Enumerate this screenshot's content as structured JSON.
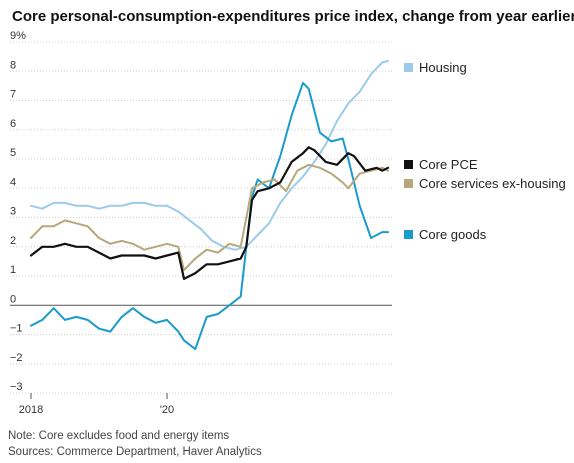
{
  "chart_data": {
    "type": "line",
    "title": "Core personal-consumption-expenditures price index, change from year earlier",
    "y_unit": "%",
    "ylim": [
      -3,
      9
    ],
    "y_ticks": [
      -3,
      -2,
      -1,
      0,
      1,
      2,
      3,
      4,
      5,
      6,
      7,
      8,
      9
    ],
    "x_range": [
      "2018-01",
      "2023-04"
    ],
    "x_tick_labels": [
      {
        "date": "2018-01",
        "label": "2018"
      },
      {
        "date": "2020-01",
        "label": "'20"
      }
    ],
    "grid": "horizontal",
    "legend": "right",
    "series": [
      {
        "name": "Housing",
        "color": "#9ccbe9",
        "points": [
          [
            "2018-01",
            3.4
          ],
          [
            "2018-03",
            3.3
          ],
          [
            "2018-05",
            3.5
          ],
          [
            "2018-07",
            3.5
          ],
          [
            "2018-09",
            3.4
          ],
          [
            "2018-11",
            3.4
          ],
          [
            "2019-01",
            3.3
          ],
          [
            "2019-03",
            3.4
          ],
          [
            "2019-05",
            3.4
          ],
          [
            "2019-07",
            3.5
          ],
          [
            "2019-09",
            3.5
          ],
          [
            "2019-11",
            3.4
          ],
          [
            "2020-01",
            3.4
          ],
          [
            "2020-03",
            3.2
          ],
          [
            "2020-05",
            2.9
          ],
          [
            "2020-07",
            2.6
          ],
          [
            "2020-09",
            2.2
          ],
          [
            "2020-11",
            2.0
          ],
          [
            "2021-01",
            1.9
          ],
          [
            "2021-03",
            2.0
          ],
          [
            "2021-05",
            2.4
          ],
          [
            "2021-07",
            2.8
          ],
          [
            "2021-09",
            3.5
          ],
          [
            "2021-11",
            4.0
          ],
          [
            "2022-01",
            4.4
          ],
          [
            "2022-03",
            4.9
          ],
          [
            "2022-05",
            5.5
          ],
          [
            "2022-07",
            6.3
          ],
          [
            "2022-09",
            6.9
          ],
          [
            "2022-11",
            7.3
          ],
          [
            "2023-01",
            7.9
          ],
          [
            "2023-03",
            8.3
          ],
          [
            "2023-04",
            8.35
          ]
        ]
      },
      {
        "name": "Core PCE",
        "color": "#111111",
        "points": [
          [
            "2018-01",
            1.7
          ],
          [
            "2018-03",
            2.0
          ],
          [
            "2018-05",
            2.0
          ],
          [
            "2018-07",
            2.1
          ],
          [
            "2018-09",
            2.0
          ],
          [
            "2018-11",
            2.0
          ],
          [
            "2019-01",
            1.8
          ],
          [
            "2019-03",
            1.6
          ],
          [
            "2019-05",
            1.7
          ],
          [
            "2019-07",
            1.7
          ],
          [
            "2019-09",
            1.7
          ],
          [
            "2019-11",
            1.6
          ],
          [
            "2020-01",
            1.7
          ],
          [
            "2020-03",
            1.8
          ],
          [
            "2020-04",
            0.9
          ],
          [
            "2020-06",
            1.1
          ],
          [
            "2020-08",
            1.4
          ],
          [
            "2020-10",
            1.4
          ],
          [
            "2020-12",
            1.5
          ],
          [
            "2021-02",
            1.6
          ],
          [
            "2021-03",
            2.0
          ],
          [
            "2021-04",
            3.6
          ],
          [
            "2021-05",
            3.9
          ],
          [
            "2021-07",
            4.0
          ],
          [
            "2021-09",
            4.2
          ],
          [
            "2021-11",
            4.9
          ],
          [
            "2022-01",
            5.2
          ],
          [
            "2022-02",
            5.4
          ],
          [
            "2022-03",
            5.3
          ],
          [
            "2022-05",
            4.9
          ],
          [
            "2022-07",
            4.8
          ],
          [
            "2022-09",
            5.2
          ],
          [
            "2022-10",
            5.1
          ],
          [
            "2022-12",
            4.6
          ],
          [
            "2023-02",
            4.7
          ],
          [
            "2023-03",
            4.6
          ],
          [
            "2023-04",
            4.7
          ]
        ]
      },
      {
        "name": "Core services ex-housing",
        "color": "#b5a87a",
        "points": [
          [
            "2018-01",
            2.3
          ],
          [
            "2018-03",
            2.7
          ],
          [
            "2018-05",
            2.7
          ],
          [
            "2018-07",
            2.9
          ],
          [
            "2018-09",
            2.8
          ],
          [
            "2018-11",
            2.7
          ],
          [
            "2019-01",
            2.3
          ],
          [
            "2019-03",
            2.1
          ],
          [
            "2019-05",
            2.2
          ],
          [
            "2019-07",
            2.1
          ],
          [
            "2019-09",
            1.9
          ],
          [
            "2019-11",
            2.0
          ],
          [
            "2020-01",
            2.1
          ],
          [
            "2020-03",
            2.0
          ],
          [
            "2020-04",
            1.2
          ],
          [
            "2020-06",
            1.6
          ],
          [
            "2020-08",
            1.9
          ],
          [
            "2020-10",
            1.8
          ],
          [
            "2020-12",
            2.1
          ],
          [
            "2021-02",
            2.0
          ],
          [
            "2021-04",
            4.0
          ],
          [
            "2021-06",
            4.2
          ],
          [
            "2021-08",
            4.3
          ],
          [
            "2021-10",
            3.9
          ],
          [
            "2021-12",
            4.6
          ],
          [
            "2022-02",
            4.8
          ],
          [
            "2022-04",
            4.7
          ],
          [
            "2022-06",
            4.5
          ],
          [
            "2022-08",
            4.2
          ],
          [
            "2022-09",
            4.0
          ],
          [
            "2022-11",
            4.5
          ],
          [
            "2023-01",
            4.6
          ],
          [
            "2023-03",
            4.7
          ],
          [
            "2023-04",
            4.6
          ]
        ]
      },
      {
        "name": "Core goods",
        "color": "#1a9bcc",
        "points": [
          [
            "2018-01",
            -0.7
          ],
          [
            "2018-03",
            -0.5
          ],
          [
            "2018-05",
            -0.1
          ],
          [
            "2018-07",
            -0.5
          ],
          [
            "2018-09",
            -0.4
          ],
          [
            "2018-11",
            -0.5
          ],
          [
            "2019-01",
            -0.8
          ],
          [
            "2019-03",
            -0.9
          ],
          [
            "2019-05",
            -0.4
          ],
          [
            "2019-07",
            -0.1
          ],
          [
            "2019-09",
            -0.4
          ],
          [
            "2019-11",
            -0.6
          ],
          [
            "2020-01",
            -0.5
          ],
          [
            "2020-03",
            -0.9
          ],
          [
            "2020-04",
            -1.2
          ],
          [
            "2020-06",
            -1.5
          ],
          [
            "2020-08",
            -0.4
          ],
          [
            "2020-10",
            -0.3
          ],
          [
            "2020-12",
            0.0
          ],
          [
            "2021-02",
            0.3
          ],
          [
            "2021-03",
            2.0
          ],
          [
            "2021-04",
            3.7
          ],
          [
            "2021-05",
            4.3
          ],
          [
            "2021-07",
            4.0
          ],
          [
            "2021-09",
            5.1
          ],
          [
            "2021-11",
            6.5
          ],
          [
            "2022-01",
            7.6
          ],
          [
            "2022-02",
            7.4
          ],
          [
            "2022-04",
            5.9
          ],
          [
            "2022-06",
            5.6
          ],
          [
            "2022-08",
            5.7
          ],
          [
            "2022-09",
            5.0
          ],
          [
            "2022-11",
            3.4
          ],
          [
            "2023-01",
            2.3
          ],
          [
            "2023-03",
            2.5
          ],
          [
            "2023-04",
            2.5
          ]
        ]
      }
    ],
    "notes": [
      "Note: Core excludes food and energy items",
      "Sources: Commerce Department, Haver Analytics"
    ]
  }
}
